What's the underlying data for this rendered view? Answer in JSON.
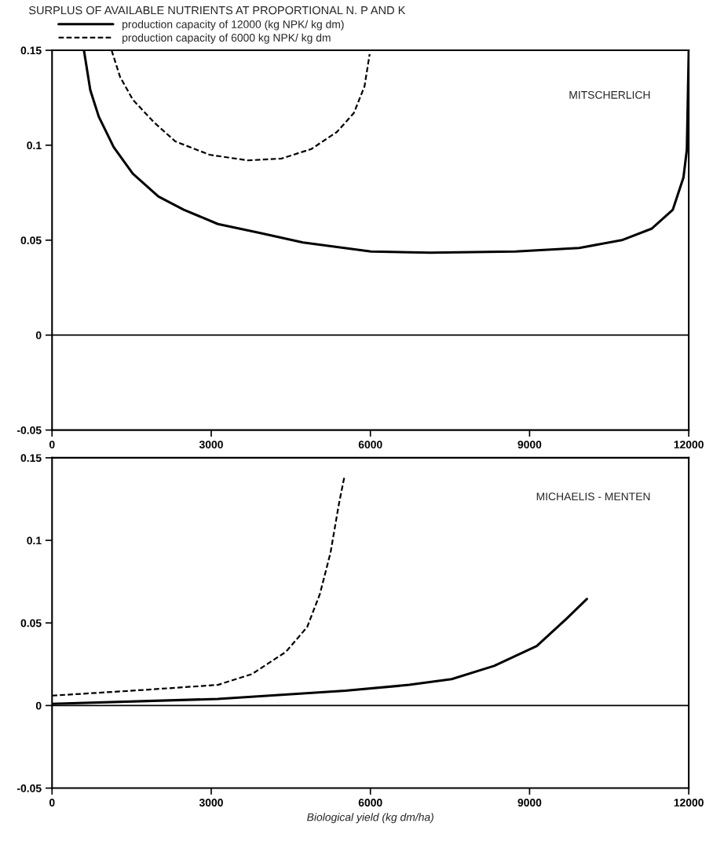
{
  "chart_data": [
    {
      "type": "line",
      "title": "SURPLUS OF AVAILABLE NUTRIENTS AT PROPORTIONAL N. P AND K",
      "legend": "top left",
      "annotations": [
        "MITSCHERLICH"
      ],
      "xlim": [
        0,
        12000
      ],
      "xticks": [
        0,
        3000,
        6000,
        9000,
        12000
      ],
      "ylim": [
        -0.05,
        0.15
      ],
      "yticks": [
        -0.05,
        0,
        0.05,
        0.1,
        0.15
      ],
      "ref_lines": [
        {
          "axis": "y",
          "value": 0,
          "color": "#000000"
        }
      ],
      "series": [
        {
          "name": "production capacity of 12000 (kg NPK/ kg dm)",
          "color": "#000000",
          "line_style": "solid",
          "x": [
            601,
            721,
            881,
            1162,
            1522,
            2003,
            2484,
            3125,
            3926,
            4728,
            6010,
            7131,
            8734,
            9936,
            10737,
            11298,
            11699,
            11900,
            11964,
            12000
          ],
          "values": [
            0.15,
            0.129,
            0.115,
            0.099,
            0.085,
            0.073,
            0.066,
            0.0585,
            0.0537,
            0.0488,
            0.044,
            0.0434,
            0.044,
            0.0459,
            0.05,
            0.056,
            0.066,
            0.083,
            0.0976,
            0.15
          ]
        },
        {
          "name": "production capacity of 6000 kg NPK/ kg dm",
          "color": "#000000",
          "line_style": "dashed",
          "x": [
            1122,
            1282,
            1522,
            1923,
            2324,
            2965,
            3686,
            4327,
            4888,
            5369,
            5689,
            5889,
            5986
          ],
          "values": [
            0.15,
            0.136,
            0.124,
            0.112,
            0.102,
            0.095,
            0.092,
            0.093,
            0.098,
            0.107,
            0.117,
            0.131,
            0.148
          ]
        }
      ]
    },
    {
      "type": "line",
      "xlabel": "Biological yield (kg dm/ha)",
      "annotations": [
        "MICHAELIS - MENTEN"
      ],
      "xlim": [
        0,
        12000
      ],
      "xticks": [
        0,
        3000,
        6000,
        9000,
        12000
      ],
      "ylim": [
        -0.05,
        0.15
      ],
      "yticks": [
        -0.05,
        0,
        0.05,
        0.1,
        0.15
      ],
      "ref_lines": [
        {
          "axis": "y",
          "value": 0,
          "color": "#000000"
        }
      ],
      "series": [
        {
          "color": "#000000",
          "line_style": "solid",
          "x": [
            0,
            3125,
            5529,
            6731,
            7532,
            8333,
            9135,
            9696,
            10080
          ],
          "values": [
            0.001,
            0.004,
            0.009,
            0.0125,
            0.016,
            0.024,
            0.036,
            0.0525,
            0.0645
          ]
        },
        {
          "color": "#000000",
          "line_style": "dashed",
          "x": [
            0,
            1522,
            3125,
            3766,
            4407,
            4808,
            5048,
            5248,
            5409,
            5513
          ],
          "values": [
            0.006,
            0.009,
            0.0125,
            0.019,
            0.0325,
            0.0475,
            0.0675,
            0.0925,
            0.1225,
            0.139
          ]
        }
      ]
    }
  ]
}
